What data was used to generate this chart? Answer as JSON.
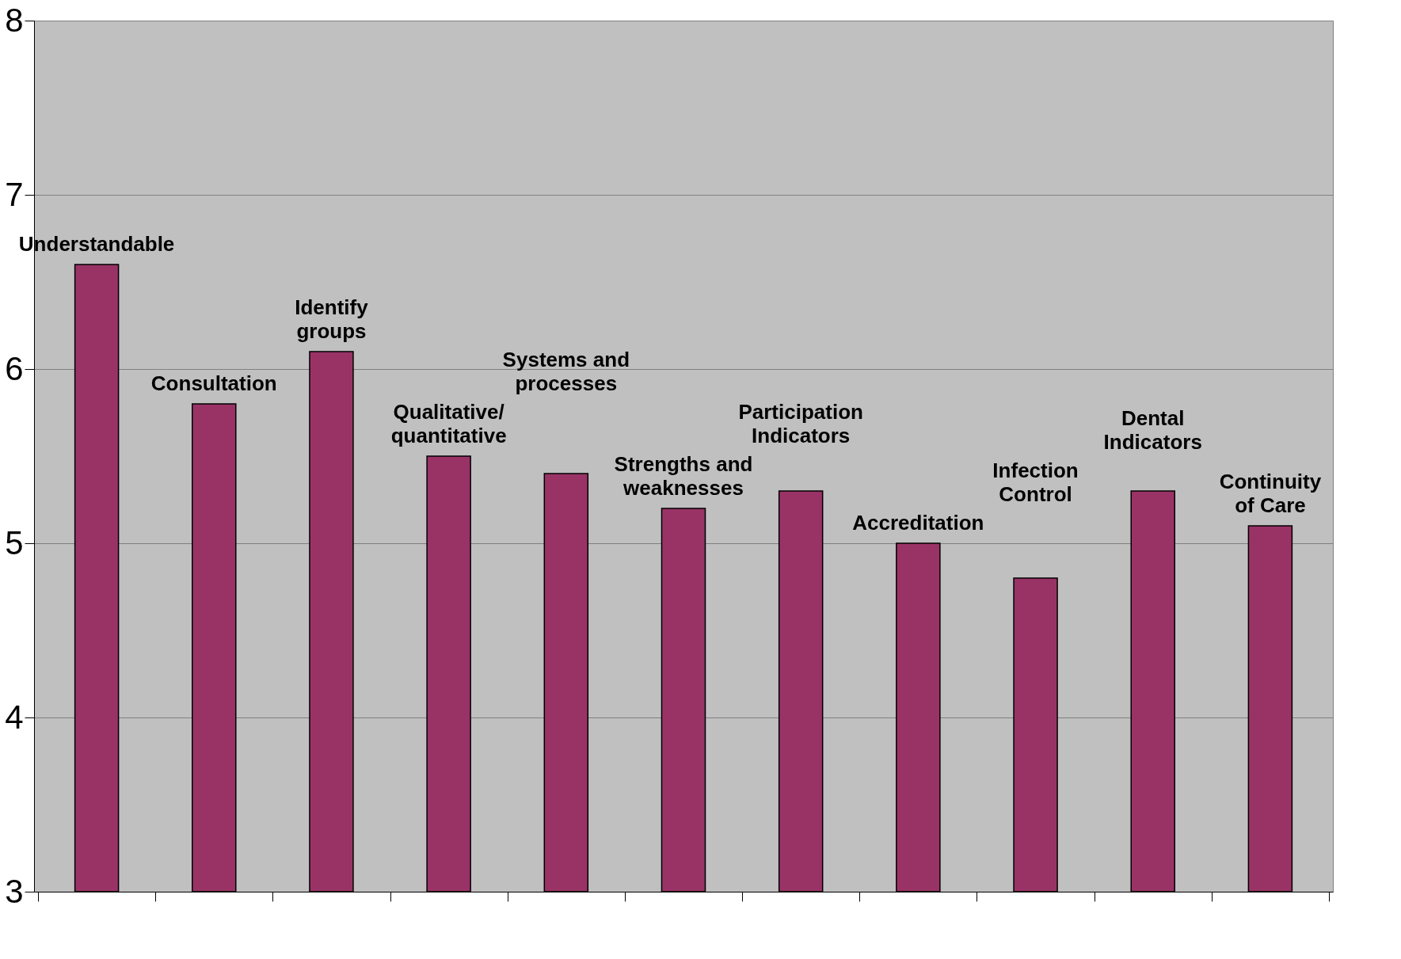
{
  "chart_data": {
    "type": "bar",
    "categories": [
      "Understandable",
      "Consultation",
      "Identify\ngroups",
      "Qualitative/\nquantitative",
      "Systems and\nprocesses",
      "Strengths and\nweaknesses",
      "Participation\nIndicators",
      "Accreditation",
      "Infection\nControl",
      "Dental\nIndicators",
      "Continuity\nof Care"
    ],
    "values": [
      6.6,
      5.8,
      6.1,
      5.5,
      5.4,
      5.2,
      5.3,
      5.0,
      4.8,
      5.3,
      5.1
    ],
    "color": "#993366",
    "ylim": [
      3,
      8
    ],
    "yticks": [
      3,
      4,
      5,
      6,
      7,
      8
    ],
    "grid": "y"
  }
}
